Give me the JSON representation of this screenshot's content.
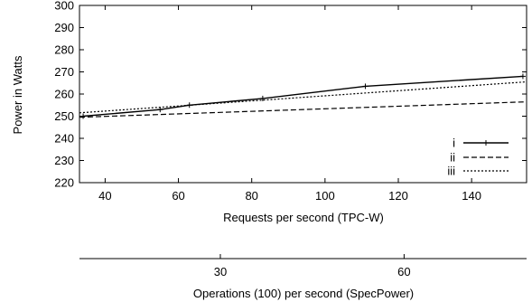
{
  "chart_data": {
    "type": "line",
    "title": "",
    "xlabel": "Requests per second (TPC-W)",
    "ylabel": "Power in Watts",
    "xlim": [
      33,
      155
    ],
    "ylim": [
      220,
      300
    ],
    "xticks": [
      40,
      60,
      80,
      100,
      120,
      140
    ],
    "yticks": [
      220,
      230,
      240,
      250,
      260,
      270,
      280,
      290,
      300
    ],
    "grid": false,
    "legend": "bottom-right",
    "secondary_xaxis": {
      "label": "Operations (100) per second (SpecPower)",
      "xlim": [
        7,
        80
      ],
      "ticks": [
        30,
        60
      ]
    },
    "series": [
      {
        "name": "i",
        "style": "solid",
        "markers": true,
        "x": [
          34,
          55,
          63,
          83,
          111,
          154
        ],
        "y": [
          250,
          253,
          255,
          258,
          263.5,
          268
        ]
      },
      {
        "name": "ii",
        "style": "dashed",
        "markers": false,
        "x": [
          33,
          155
        ],
        "y": [
          249.5,
          256.5
        ]
      },
      {
        "name": "iii",
        "style": "dotted",
        "markers": false,
        "x": [
          33,
          155
        ],
        "y": [
          251.5,
          265.5
        ]
      }
    ]
  }
}
